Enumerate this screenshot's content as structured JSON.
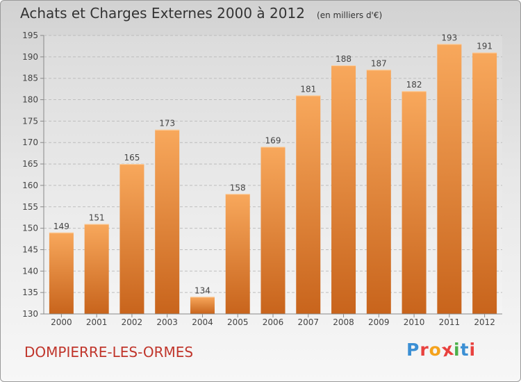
{
  "header": {
    "title": "Achats et Charges Externes 2000 à 2012",
    "unit": "(en milliers d'€)"
  },
  "footer": {
    "commune": "DOMPIERRE-LES-ORMES",
    "logo_letters": [
      "P",
      "r",
      "o",
      "x",
      "i",
      "t",
      "i"
    ]
  },
  "colors": {
    "bar_light": "#f8a85c",
    "bar_dark": "#c8641c",
    "commune_text": "#c0352b",
    "logo": [
      "#3b8fd4",
      "#e8413e",
      "#f4a21c",
      "#e8413e",
      "#4bb04a",
      "#3b8fd4",
      "#e8413e"
    ]
  },
  "chart_data": {
    "type": "bar",
    "title": "Achats et Charges Externes 2000 à 2012",
    "subtitle": "(en milliers d'€)",
    "categories": [
      "2000",
      "2001",
      "2002",
      "2003",
      "2004",
      "2005",
      "2006",
      "2007",
      "2008",
      "2009",
      "2010",
      "2011",
      "2012"
    ],
    "values": [
      149,
      151,
      165,
      173,
      134,
      158,
      169,
      181,
      188,
      187,
      182,
      193,
      191
    ],
    "data_labels": [
      "149",
      "151",
      "165",
      "173",
      "134",
      "158",
      "169",
      "181",
      "188",
      "187",
      "182",
      "193",
      "191"
    ],
    "ylim": [
      130,
      195
    ],
    "yticks": [
      130,
      135,
      140,
      145,
      150,
      155,
      160,
      165,
      170,
      175,
      180,
      185,
      190,
      195
    ],
    "ytick_labels": [
      "130",
      "135",
      "140",
      "145",
      "150",
      "155",
      "160",
      "165",
      "170",
      "175",
      "180",
      "185",
      "190",
      "195"
    ],
    "grid": "horizontal-dashed",
    "legend": "none"
  }
}
